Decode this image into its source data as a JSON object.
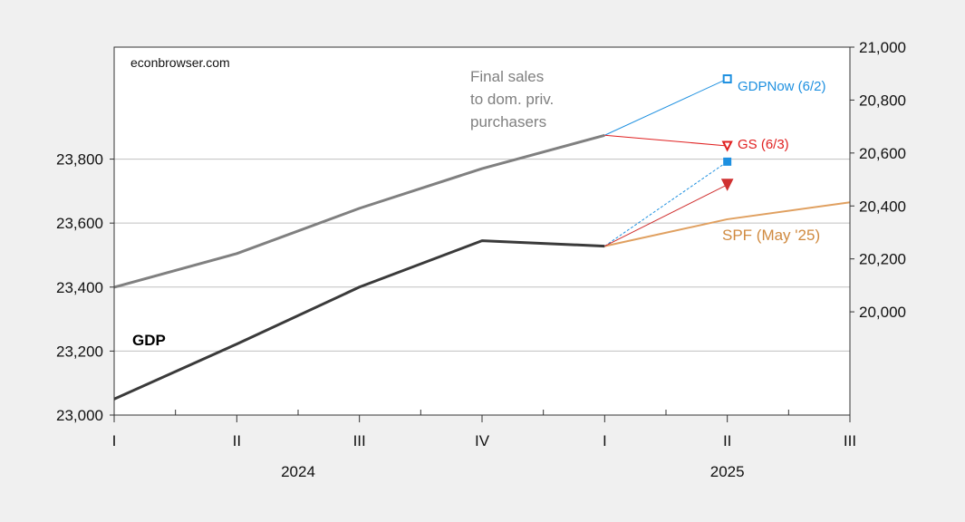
{
  "chart_data": {
    "type": "line",
    "source_label": "econbrowser.com",
    "x_categories": [
      "I",
      "II",
      "III",
      "IV",
      "I",
      "II",
      "III"
    ],
    "x_years": [
      {
        "label": "2024",
        "span": [
          0,
          3
        ]
      },
      {
        "label": "2025",
        "span": [
          4,
          6
        ]
      }
    ],
    "left_axis": {
      "ticks": [
        "23,000",
        "23,200",
        "23,400",
        "23,600",
        "23,800"
      ],
      "values": [
        23000,
        23200,
        23400,
        23600,
        23800
      ],
      "ylim": [
        23000,
        24150
      ]
    },
    "right_axis": {
      "ticks": [
        "20,000",
        "20,200",
        "20,400",
        "20,600",
        "20,800",
        "21,000"
      ],
      "values": [
        20000,
        20200,
        20400,
        20600,
        20800,
        21000
      ],
      "ylim": [
        19610,
        21000
      ]
    },
    "grid": true,
    "series": [
      {
        "name": "GDP",
        "axis": "left",
        "color": "#3a3a3a",
        "x": [
          0,
          1,
          2,
          3,
          4
        ],
        "values": [
          23050,
          23222,
          23400,
          23545,
          23528
        ]
      },
      {
        "name": "Final sales to dom. priv. purchasers",
        "axis": "right",
        "color": "#808080",
        "x": [
          0,
          1,
          2,
          3,
          4
        ],
        "values": [
          20093,
          20220,
          20391,
          20541,
          20667
        ]
      },
      {
        "name": "SPF (May '25)",
        "axis": "left",
        "color": "#e0a060",
        "x": [
          4,
          5,
          6
        ],
        "values": [
          23528,
          23612,
          23665
        ]
      }
    ],
    "forecasts": [
      {
        "name": "GDPNow (6/2)",
        "axis": "right",
        "color": "#1e90e0",
        "from": [
          4,
          20667
        ],
        "to": [
          5,
          20880
        ],
        "marker": "square-open"
      },
      {
        "name": "GS (6/3)",
        "axis": "right",
        "color": "#e02020",
        "from": [
          4,
          20667
        ],
        "to": [
          5,
          20627
        ],
        "marker": "triangle-open"
      },
      {
        "name": "GDPNow GDP",
        "axis": "left",
        "color": "#1e90e0",
        "from": [
          4,
          23528
        ],
        "to": [
          5,
          23792
        ],
        "marker": "square"
      },
      {
        "name": "GS GDP",
        "axis": "left",
        "color": "#d03030",
        "from": [
          4,
          23528
        ],
        "to": [
          5,
          23720
        ],
        "marker": "triangle"
      }
    ],
    "annotations": [
      {
        "text_lines": [
          "Final sales",
          "to dom. priv.",
          "purchasers"
        ],
        "color": "#808080"
      },
      {
        "text": "GDP",
        "color": "#000000",
        "bold": true
      },
      {
        "text": "GDPNow (6/2)",
        "color": "#1e90e0"
      },
      {
        "text": "GS (6/3)",
        "color": "#e02020"
      },
      {
        "text": "SPF (May '25)",
        "color": "#d08a40"
      }
    ]
  }
}
